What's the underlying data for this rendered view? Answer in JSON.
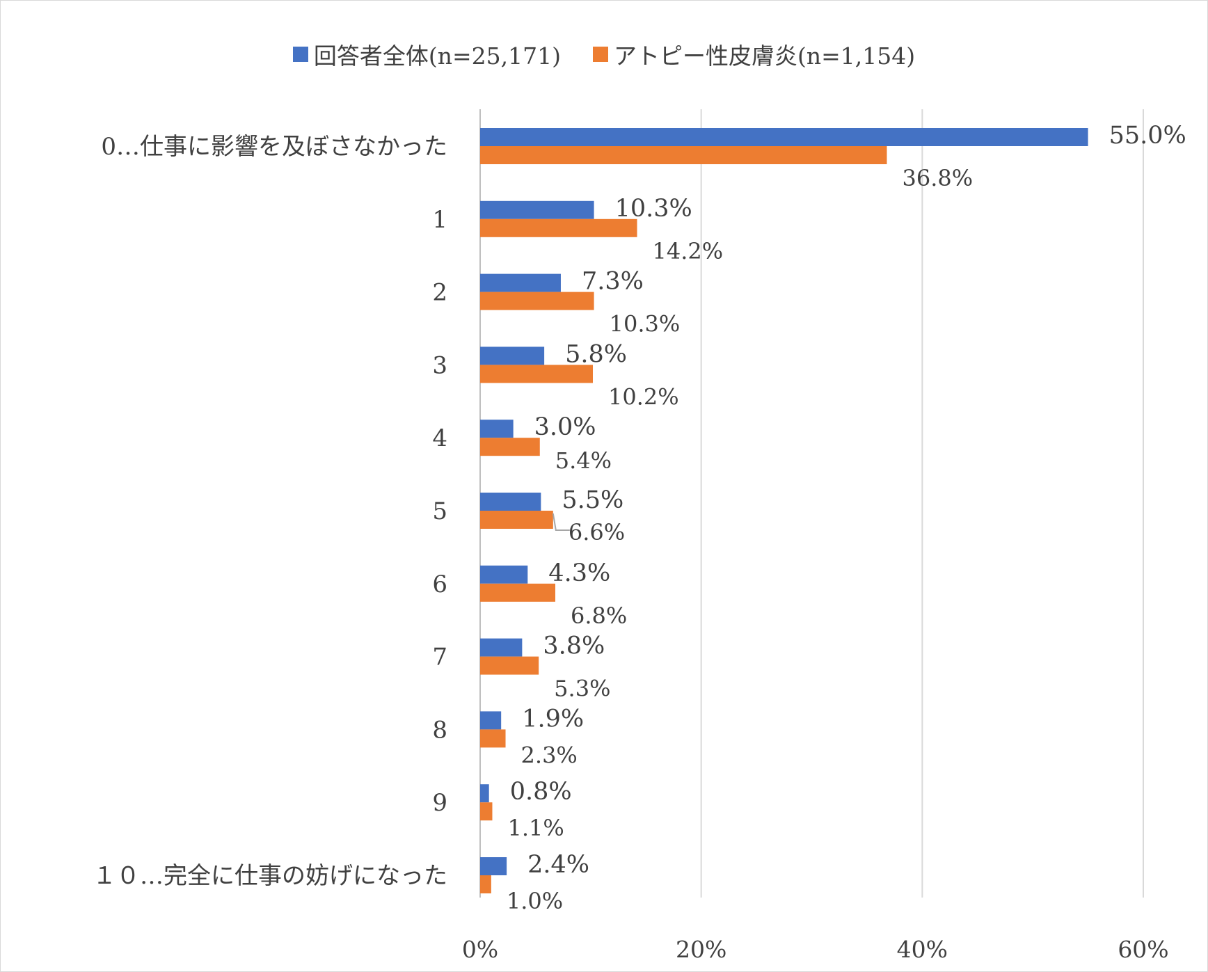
{
  "chart_data": {
    "type": "bar",
    "orientation": "horizontal",
    "categories": [
      "0…仕事に影響を及ぼさなかった",
      "1",
      "2",
      "3",
      "4",
      "5",
      "6",
      "7",
      "8",
      "9",
      "１０…完全に仕事の妨げになった"
    ],
    "series": [
      {
        "name": "回答者全体(n=25,171)",
        "color": "#4472c4",
        "values": [
          55.0,
          10.3,
          7.3,
          5.8,
          3.0,
          5.5,
          4.3,
          3.8,
          1.9,
          0.8,
          2.4
        ],
        "labels": [
          "55.0%",
          "10.3%",
          "7.3%",
          "5.8%",
          "3.0%",
          "5.5%",
          "4.3%",
          "3.8%",
          "1.9%",
          "0.8%",
          "2.4%"
        ]
      },
      {
        "name": "アトピー性皮膚炎(n=1,154)",
        "color": "#ed7d31",
        "values": [
          36.8,
          14.2,
          10.3,
          10.2,
          5.4,
          6.6,
          6.8,
          5.3,
          2.3,
          1.1,
          1.0
        ],
        "labels": [
          "36.8%",
          "14.2%",
          "10.3%",
          "10.2%",
          "5.4%",
          "6.6%",
          "6.8%",
          "5.3%",
          "2.3%",
          "1.1%",
          "1.0%"
        ]
      }
    ],
    "xlim": [
      0,
      60
    ],
    "x_ticks": [
      0,
      20,
      40,
      60
    ],
    "x_tick_labels": [
      "0%",
      "20%",
      "40%",
      "60%"
    ],
    "grid": true,
    "legend_position": "top"
  }
}
